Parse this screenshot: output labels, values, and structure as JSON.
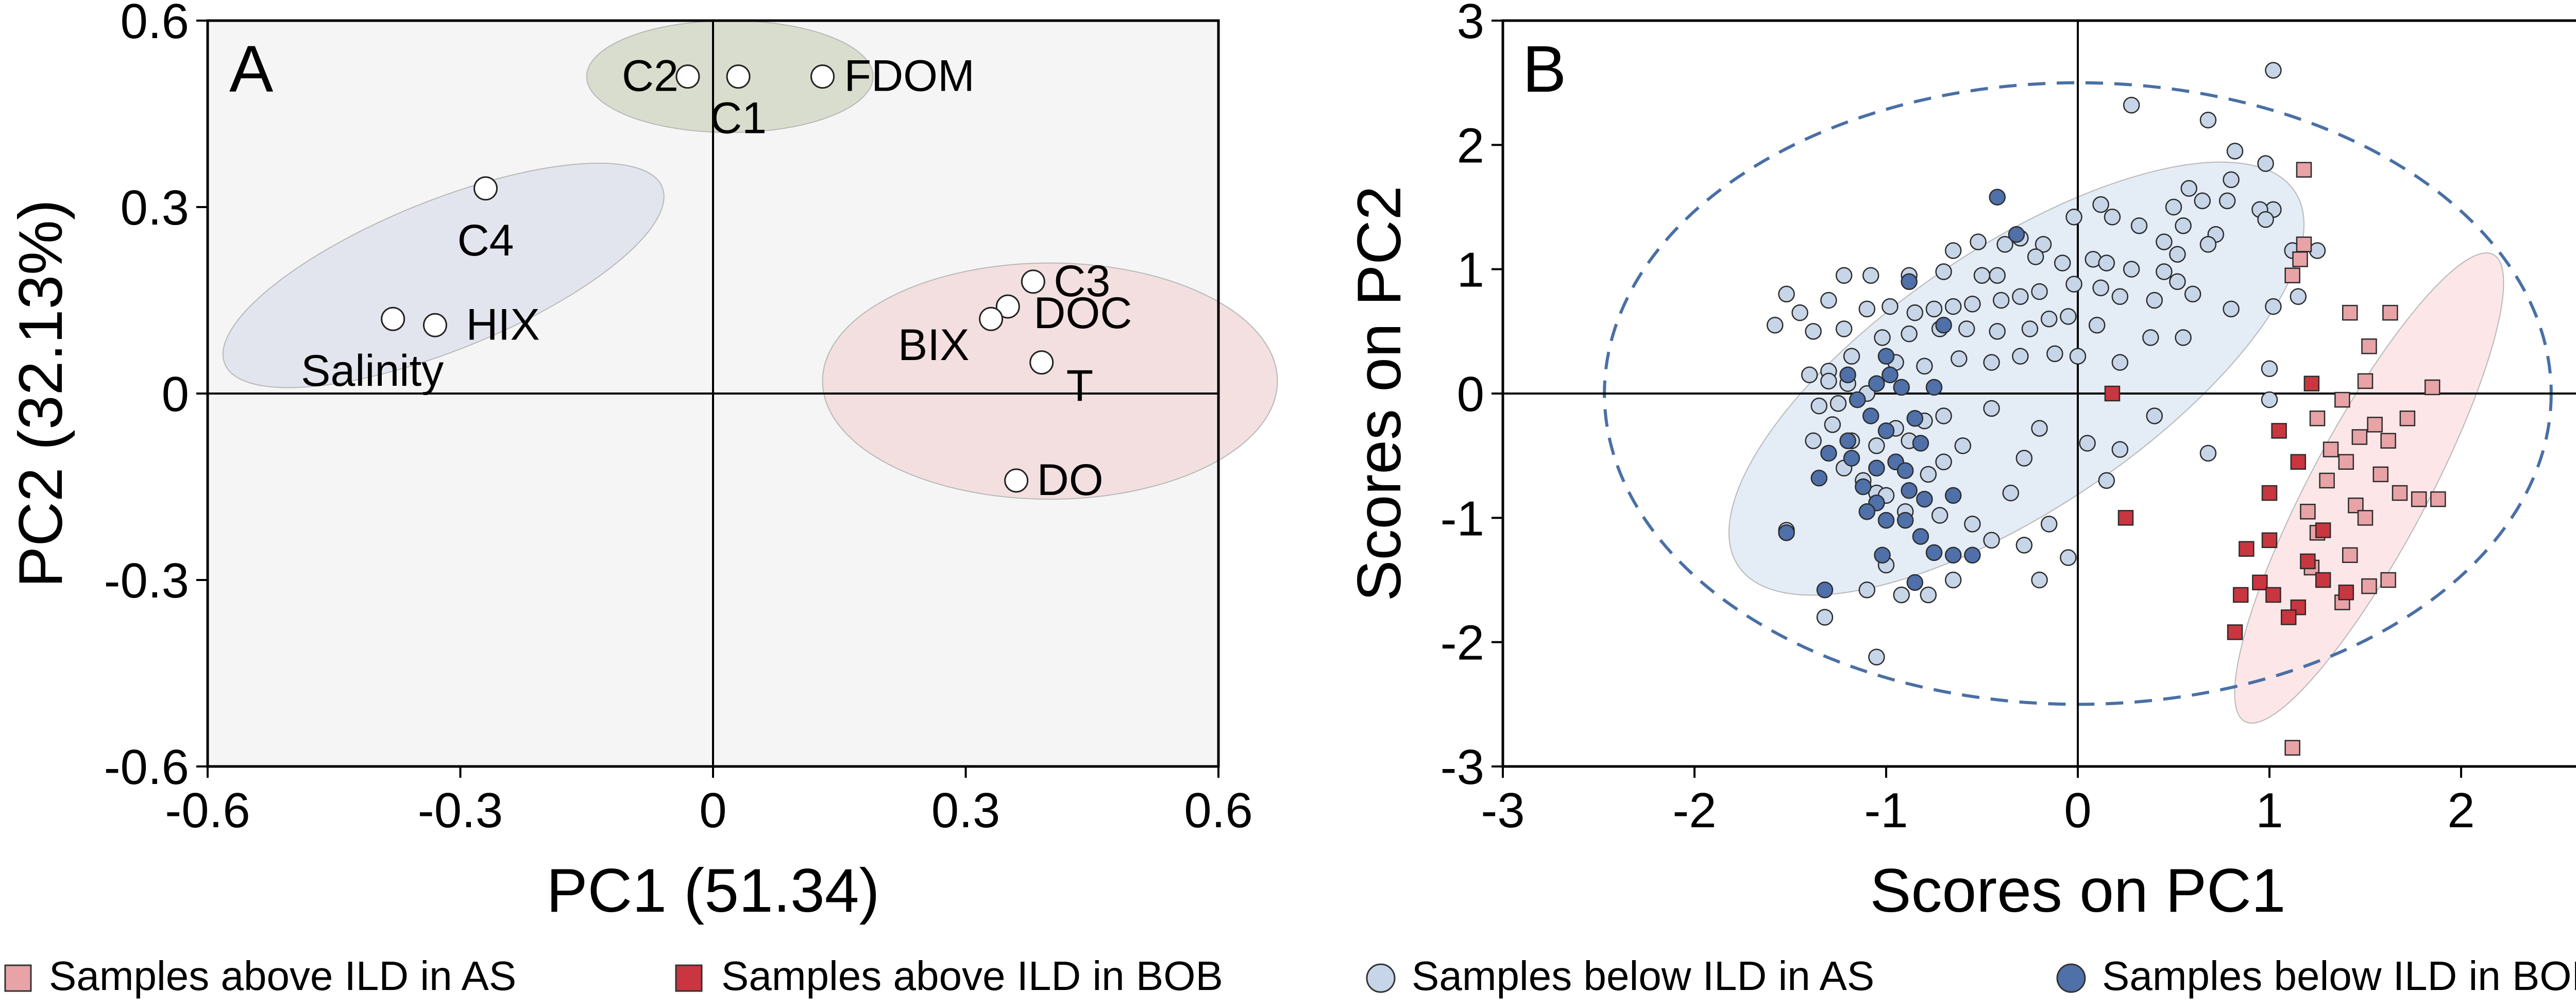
{
  "chart_data": [
    {
      "panel": "A",
      "type": "scatter",
      "title": "A",
      "xlabel": "PC1 (51.34)",
      "ylabel": "PC2 (32.13%)",
      "xlim": [
        -0.6,
        0.6
      ],
      "ylim": [
        -0.6,
        0.6
      ],
      "xticks": [
        "-0.6",
        "-0.3",
        "0",
        "0.3",
        "0.6"
      ],
      "yticks": [
        "-0.6",
        "-0.3",
        "0",
        "0.3",
        "0.6"
      ],
      "grid": false,
      "background": "#f5f5f5",
      "groups": [
        {
          "name": "fdom-group",
          "center": [
            0.02,
            0.51
          ],
          "radii": [
            0.17,
            0.09
          ],
          "angle": 0,
          "color": "#d3d8c6"
        },
        {
          "name": "humic-group",
          "center": [
            -0.32,
            0.19
          ],
          "radii": [
            0.28,
            0.12
          ],
          "angle": 22,
          "color": "#dfe2ec"
        },
        {
          "name": "bix-group",
          "center": [
            0.4,
            0.02
          ],
          "radii": [
            0.27,
            0.19
          ],
          "angle": 0,
          "color": "#f2dada"
        }
      ],
      "points": [
        {
          "label": "C2",
          "x": -0.03,
          "y": 0.51
        },
        {
          "label": "C1",
          "x": 0.03,
          "y": 0.51
        },
        {
          "label": "FDOM",
          "x": 0.13,
          "y": 0.51
        },
        {
          "label": "C4",
          "x": -0.27,
          "y": 0.33
        },
        {
          "label": "Salinity",
          "x": -0.38,
          "y": 0.12
        },
        {
          "label": "HIX",
          "x": -0.33,
          "y": 0.11
        },
        {
          "label": "C3",
          "x": 0.38,
          "y": 0.18
        },
        {
          "label": "DOC",
          "x": 0.35,
          "y": 0.14
        },
        {
          "label": "BIX",
          "x": 0.33,
          "y": 0.12
        },
        {
          "label": "T",
          "x": 0.39,
          "y": 0.05
        },
        {
          "label": "DO",
          "x": 0.36,
          "y": -0.14
        }
      ]
    },
    {
      "panel": "B",
      "type": "scatter",
      "title": "B",
      "xlabel": "Scores on PC1",
      "ylabel": "Scores on PC2",
      "xlim": [
        -3,
        3
      ],
      "ylim": [
        -3,
        3
      ],
      "xticks": [
        "-3",
        "-2",
        "-1",
        "0",
        "1",
        "2",
        "3"
      ],
      "yticks": [
        "-3",
        "-2",
        "-1",
        "0",
        "1",
        "2",
        "3"
      ],
      "grid": false,
      "confidence_ellipse": {
        "center": [
          0,
          0
        ],
        "radii": [
          2.47,
          2.5
        ],
        "style": "dashed",
        "color": "#4a6fa5"
      },
      "groups": [
        {
          "name": "below-ild-group",
          "center": [
            -0.32,
            0.12
          ],
          "radii": [
            1.75,
            1.05
          ],
          "angle": 34,
          "color": "#dfe9f5"
        },
        {
          "name": "above-ild-group",
          "center": [
            1.52,
            -0.76
          ],
          "radii": [
            1.38,
            0.47
          ],
          "angle": 62,
          "color": "#fbe2e4"
        }
      ],
      "series": [
        {
          "name": "Samples above ILD in AS",
          "marker": "square",
          "color": "#e8a3a6",
          "points": [
            [
              1.18,
              1.8
            ],
            [
              1.18,
              1.2
            ],
            [
              1.16,
              1.08
            ],
            [
              1.12,
              0.95
            ],
            [
              1.42,
              0.65
            ],
            [
              1.63,
              0.65
            ],
            [
              1.52,
              0.38
            ],
            [
              1.5,
              0.1
            ],
            [
              1.85,
              0.05
            ],
            [
              1.38,
              -0.05
            ],
            [
              1.55,
              -0.25
            ],
            [
              1.72,
              -0.2
            ],
            [
              1.62,
              -0.38
            ],
            [
              1.47,
              -0.35
            ],
            [
              1.4,
              -0.55
            ],
            [
              1.3,
              -0.7
            ],
            [
              1.58,
              -0.65
            ],
            [
              1.68,
              -0.8
            ],
            [
              1.88,
              -0.85
            ],
            [
              1.78,
              -0.85
            ],
            [
              1.45,
              -0.9
            ],
            [
              1.2,
              -0.95
            ],
            [
              1.25,
              -1.12
            ],
            [
              1.5,
              -1.0
            ],
            [
              1.42,
              -1.3
            ],
            [
              1.22,
              -1.4
            ],
            [
              1.62,
              -1.5
            ],
            [
              1.52,
              -1.55
            ],
            [
              1.38,
              -1.68
            ],
            [
              1.12,
              -2.85
            ],
            [
              1.25,
              -0.2
            ],
            [
              1.32,
              -0.45
            ]
          ]
        },
        {
          "name": "Samples above ILD in BOB",
          "marker": "square",
          "color": "#c9363f",
          "points": [
            [
              0.18,
              0.0
            ],
            [
              0.25,
              -1.0
            ],
            [
              1.05,
              -0.3
            ],
            [
              1.22,
              0.08
            ],
            [
              1.15,
              -0.55
            ],
            [
              1.0,
              -0.8
            ],
            [
              1.28,
              -1.1
            ],
            [
              0.88,
              -1.25
            ],
            [
              1.2,
              -1.35
            ],
            [
              0.95,
              -1.52
            ],
            [
              1.02,
              -1.62
            ],
            [
              0.85,
              -1.62
            ],
            [
              1.15,
              -1.72
            ],
            [
              1.1,
              -1.8
            ],
            [
              0.82,
              -1.92
            ],
            [
              1.0,
              -1.18
            ],
            [
              1.28,
              -1.5
            ],
            [
              1.4,
              -1.6
            ]
          ]
        },
        {
          "name": "Samples below ILD in AS",
          "marker": "circle",
          "color": "#c7d5e8",
          "points": [
            [
              1.02,
              2.6
            ],
            [
              0.28,
              2.32
            ],
            [
              0.68,
              2.2
            ],
            [
              0.82,
              1.95
            ],
            [
              0.98,
              1.85
            ],
            [
              0.8,
              1.72
            ],
            [
              0.58,
              1.65
            ],
            [
              0.5,
              1.5
            ],
            [
              0.65,
              1.55
            ],
            [
              0.78,
              1.55
            ],
            [
              0.12,
              1.52
            ],
            [
              0.32,
              1.35
            ],
            [
              0.55,
              1.35
            ],
            [
              0.72,
              1.28
            ],
            [
              1.02,
              1.48
            ],
            [
              0.95,
              1.48
            ],
            [
              0.98,
              1.4
            ],
            [
              -0.02,
              1.42
            ],
            [
              0.18,
              1.42
            ],
            [
              0.45,
              1.22
            ],
            [
              0.52,
              1.12
            ],
            [
              0.68,
              1.2
            ],
            [
              1.12,
              1.15
            ],
            [
              1.25,
              1.15
            ],
            [
              -0.18,
              1.2
            ],
            [
              -0.3,
              1.25
            ],
            [
              -0.38,
              1.2
            ],
            [
              -0.52,
              1.22
            ],
            [
              -0.65,
              1.15
            ],
            [
              -0.22,
              1.1
            ],
            [
              -0.08,
              1.05
            ],
            [
              0.08,
              1.08
            ],
            [
              0.15,
              1.05
            ],
            [
              0.28,
              1.0
            ],
            [
              0.45,
              0.98
            ],
            [
              -0.42,
              0.95
            ],
            [
              -0.5,
              0.95
            ],
            [
              -0.7,
              0.98
            ],
            [
              -0.88,
              0.95
            ],
            [
              -1.08,
              0.95
            ],
            [
              -1.22,
              0.95
            ],
            [
              -0.02,
              0.88
            ],
            [
              0.12,
              0.85
            ],
            [
              0.22,
              0.78
            ],
            [
              0.4,
              0.75
            ],
            [
              0.52,
              0.9
            ],
            [
              0.6,
              0.8
            ],
            [
              0.8,
              0.68
            ],
            [
              1.02,
              0.7
            ],
            [
              1.15,
              0.78
            ],
            [
              -0.2,
              0.82
            ],
            [
              -0.3,
              0.78
            ],
            [
              -0.4,
              0.75
            ],
            [
              -0.55,
              0.72
            ],
            [
              -0.65,
              0.7
            ],
            [
              -0.75,
              0.68
            ],
            [
              -0.85,
              0.65
            ],
            [
              -0.98,
              0.7
            ],
            [
              -1.1,
              0.68
            ],
            [
              -1.3,
              0.75
            ],
            [
              -1.45,
              0.65
            ],
            [
              -1.52,
              0.8
            ],
            [
              -1.58,
              0.55
            ],
            [
              -0.15,
              0.6
            ],
            [
              -0.05,
              0.62
            ],
            [
              0.1,
              0.55
            ],
            [
              0.38,
              0.45
            ],
            [
              0.55,
              0.45
            ],
            [
              -0.25,
              0.52
            ],
            [
              -0.42,
              0.5
            ],
            [
              -0.58,
              0.52
            ],
            [
              -0.72,
              0.52
            ],
            [
              -0.88,
              0.48
            ],
            [
              -1.02,
              0.45
            ],
            [
              -1.22,
              0.52
            ],
            [
              -1.38,
              0.5
            ],
            [
              0.0,
              0.3
            ],
            [
              0.22,
              0.25
            ],
            [
              -0.12,
              0.32
            ],
            [
              -0.3,
              0.3
            ],
            [
              -0.45,
              0.25
            ],
            [
              -0.62,
              0.28
            ],
            [
              -0.8,
              0.22
            ],
            [
              -0.95,
              0.25
            ],
            [
              -1.18,
              0.3
            ],
            [
              -1.3,
              0.18
            ],
            [
              -1.4,
              0.15
            ],
            [
              -1.3,
              0.1
            ],
            [
              -1.2,
              0.08
            ],
            [
              -1.1,
              0.0
            ],
            [
              -1.25,
              -0.08
            ],
            [
              -1.35,
              -0.1
            ],
            [
              -1.28,
              -0.25
            ],
            [
              -1.38,
              -0.38
            ],
            [
              -1.18,
              -0.38
            ],
            [
              -1.05,
              -0.42
            ],
            [
              -0.95,
              -0.28
            ],
            [
              -0.88,
              -0.38
            ],
            [
              -0.8,
              -0.22
            ],
            [
              -0.7,
              -0.18
            ],
            [
              -0.45,
              -0.12
            ],
            [
              -0.2,
              -0.28
            ],
            [
              -0.28,
              -0.52
            ],
            [
              -0.6,
              -0.42
            ],
            [
              -0.7,
              -0.55
            ],
            [
              -1.22,
              -0.6
            ],
            [
              -1.12,
              -0.7
            ],
            [
              -1.05,
              -0.8
            ],
            [
              -1.0,
              -0.82
            ],
            [
              -0.78,
              -0.65
            ],
            [
              -0.9,
              -0.95
            ],
            [
              -0.72,
              -0.98
            ],
            [
              -1.52,
              -1.1
            ],
            [
              -0.45,
              -1.18
            ],
            [
              -0.28,
              -1.22
            ],
            [
              -0.05,
              -1.32
            ],
            [
              -0.2,
              -1.5
            ],
            [
              -0.65,
              -1.5
            ],
            [
              -0.78,
              -1.62
            ],
            [
              -0.92,
              -1.62
            ],
            [
              -1.1,
              -1.58
            ],
            [
              -1.32,
              -1.8
            ],
            [
              -1.05,
              -2.12
            ],
            [
              -1.0,
              -1.38
            ],
            [
              0.4,
              -0.18
            ],
            [
              0.22,
              -0.45
            ],
            [
              1.0,
              -0.05
            ],
            [
              1.0,
              0.2
            ],
            [
              0.68,
              -0.48
            ],
            [
              -0.15,
              -1.05
            ],
            [
              -0.55,
              -1.05
            ],
            [
              -0.35,
              -0.8
            ],
            [
              0.15,
              -0.7
            ],
            [
              0.05,
              -0.4
            ]
          ]
        },
        {
          "name": "Samples below ILD in BOB",
          "marker": "circle",
          "color": "#4f70a8",
          "points": [
            [
              -0.42,
              1.58
            ],
            [
              -0.32,
              1.28
            ],
            [
              -0.88,
              0.9
            ],
            [
              -0.7,
              0.55
            ],
            [
              -1.0,
              0.3
            ],
            [
              -0.98,
              0.15
            ],
            [
              -1.2,
              0.15
            ],
            [
              -1.05,
              0.08
            ],
            [
              -0.92,
              0.05
            ],
            [
              -0.75,
              0.05
            ],
            [
              -1.15,
              -0.05
            ],
            [
              -1.08,
              -0.18
            ],
            [
              -1.0,
              -0.3
            ],
            [
              -0.85,
              -0.2
            ],
            [
              -0.82,
              -0.4
            ],
            [
              -1.2,
              -0.38
            ],
            [
              -1.3,
              -0.48
            ],
            [
              -1.18,
              -0.52
            ],
            [
              -1.05,
              -0.6
            ],
            [
              -0.95,
              -0.55
            ],
            [
              -0.9,
              -0.62
            ],
            [
              -1.35,
              -0.68
            ],
            [
              -1.12,
              -0.75
            ],
            [
              -0.88,
              -0.78
            ],
            [
              -0.8,
              -0.85
            ],
            [
              -1.05,
              -0.88
            ],
            [
              -1.0,
              -1.02
            ],
            [
              -0.9,
              -1.02
            ],
            [
              -0.82,
              -1.15
            ],
            [
              -1.52,
              -1.12
            ],
            [
              -1.02,
              -1.3
            ],
            [
              -0.75,
              -1.28
            ],
            [
              -0.65,
              -1.3
            ],
            [
              -0.55,
              -1.3
            ],
            [
              -1.32,
              -1.58
            ],
            [
              -0.85,
              -1.52
            ],
            [
              -0.65,
              -0.82
            ],
            [
              -1.1,
              -0.95
            ]
          ]
        }
      ]
    }
  ],
  "legend": {
    "placement": "bottom",
    "items": [
      {
        "label": "Samples above ILD in AS",
        "marker": "square",
        "color": "#e8a3a6"
      },
      {
        "label": "Samples above ILD in BOB",
        "marker": "square",
        "color": "#c9363f"
      },
      {
        "label": "Samples below ILD in AS",
        "marker": "circle",
        "color": "#c7d5e8"
      },
      {
        "label": "Samples below ILD in BOB",
        "marker": "circle",
        "color": "#4f70a8"
      }
    ]
  }
}
